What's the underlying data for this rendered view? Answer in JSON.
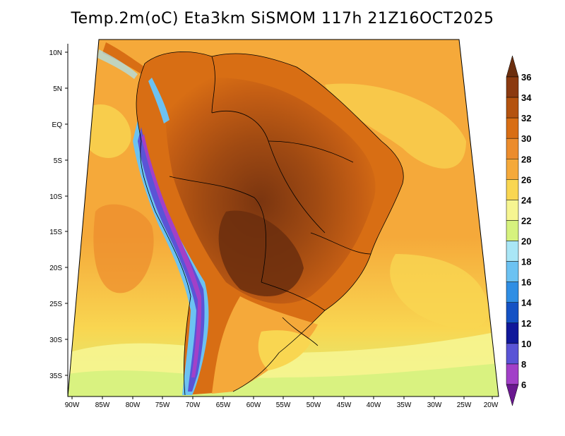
{
  "title": "Temp.2m(oC) Eta3km SiSMOM 117h 21Z16OCT2025",
  "map": {
    "lat_ticks": [
      "10N",
      "5N",
      "EQ",
      "5S",
      "10S",
      "15S",
      "20S",
      "25S",
      "30S",
      "35S"
    ],
    "lon_ticks": [
      "90W",
      "85W",
      "80W",
      "75W",
      "70W",
      "65W",
      "60W",
      "55W",
      "50W",
      "45W",
      "40W",
      "35W",
      "30W",
      "25W",
      "20W"
    ],
    "lat_range": [
      10,
      -37
    ],
    "lon_range": [
      -90,
      -20
    ]
  },
  "colorbar": {
    "labels": [
      "36",
      "34",
      "32",
      "30",
      "28",
      "26",
      "24",
      "22",
      "20",
      "18",
      "16",
      "14",
      "12",
      "10",
      "8",
      "6"
    ],
    "colors": [
      "#6b2e0e",
      "#8b3a10",
      "#b4530f",
      "#d86e14",
      "#ec8c2c",
      "#f5a93a",
      "#f9d651",
      "#f6f591",
      "#d6f27e",
      "#a9e6f6",
      "#6cc2f2",
      "#2f8ee4",
      "#1452c4",
      "#10189a",
      "#5a54d6",
      "#a240c8",
      "#6a1890"
    ]
  }
}
